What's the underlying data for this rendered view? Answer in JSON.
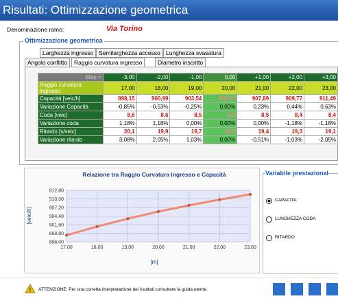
{
  "header": {
    "title": "Risultati: Ottimizzazione geometrica",
    "branch_label": "Denominazione ramo:",
    "branch_name": "Via Torino"
  },
  "group": {
    "title": "Ottimizzazione geometrica",
    "tabs_row1": [
      "Larghezza ingresso",
      "Semilarghezza accesso",
      "Lunghezza svasatura"
    ],
    "tabs_row2": [
      "Angolo conflitto",
      "Raggio curvatura ingresso",
      "Diametro inscritto"
    ]
  },
  "table": {
    "header": [
      "Step =",
      "-3,00",
      "-2,00",
      "-1,00",
      "0,00",
      "+1,00",
      "+2,00",
      "+3,00"
    ],
    "rows": [
      [
        "Raggio curvatura ingresso",
        "17,00",
        "18,00",
        "19,00",
        "20,00",
        "21,00",
        "22,00",
        "23,00"
      ],
      [
        "Capacità [veic/h]",
        "898,15",
        "900,99",
        "903,54",
        "905,87",
        "907,89",
        "909,77",
        "911,49"
      ],
      [
        "Variazione Capacità",
        "-0,85%",
        "-0,53%",
        "-0,25%",
        "0,00%",
        "0,23%",
        "0,44%",
        "0,63%"
      ],
      [
        "Coda [veic]",
        "8,6",
        "8,6",
        "8,5",
        "8,5",
        "8,5",
        "8,4",
        "8,4"
      ],
      [
        "Variazione coda",
        "1,18%",
        "1,18%",
        "0,00%",
        "0,00%",
        "0,00%",
        "-1,18%",
        "-1,18%"
      ],
      [
        "Ritardo [s/veic]",
        "20,1",
        "19,9",
        "19,7",
        "19,5",
        "19,4",
        "19,3",
        "19,1"
      ],
      [
        "Variazione ritardo",
        "3,08%",
        "2,05%",
        "1,03%",
        "0,00%",
        "-0,51%",
        "-1,03%",
        "-2,05%"
      ]
    ]
  },
  "chart": {
    "type": "line",
    "title": "Relazione tra Raggio Curvatura Ingresso e Capacità",
    "x_label": "[m]",
    "y_label": "[veic/h]",
    "x": [
      17,
      18,
      19,
      20,
      21,
      22,
      23
    ],
    "values": [
      898.15,
      900.99,
      903.54,
      905.87,
      907.89,
      909.77,
      911.49
    ],
    "color": "#f08a70",
    "xlim": [
      17,
      23
    ],
    "ylim": [
      896,
      912.8
    ],
    "xticks": [
      {
        "value": 17,
        "label": "17,00"
      },
      {
        "value": 18,
        "label": "18,00"
      },
      {
        "value": 19,
        "label": "19,00"
      },
      {
        "value": 20,
        "label": "20,00"
      },
      {
        "value": 21,
        "label": "21,00"
      },
      {
        "value": 22,
        "label": "22,00"
      },
      {
        "value": 23,
        "label": "23,00"
      }
    ],
    "yticks": [
      {
        "value": 896,
        "label": "896,00"
      },
      {
        "value": 898.8,
        "label": "898,80"
      },
      {
        "value": 901.6,
        "label": "901,60"
      },
      {
        "value": 904.4,
        "label": "904,40"
      },
      {
        "value": 907.2,
        "label": "907,20"
      },
      {
        "value": 910,
        "label": "910,00"
      },
      {
        "value": 912.8,
        "label": "912,80"
      }
    ],
    "grid": true
  },
  "panel": {
    "title": "Variabile prestazional",
    "options": [
      "CAPACITA'",
      "LUNGHEZZA CODA",
      "RITARDO"
    ]
  },
  "footer": {
    "warning": "ATTENZIONE: Per una corretta interpretazione dei risultati consultare la guida utente."
  }
}
